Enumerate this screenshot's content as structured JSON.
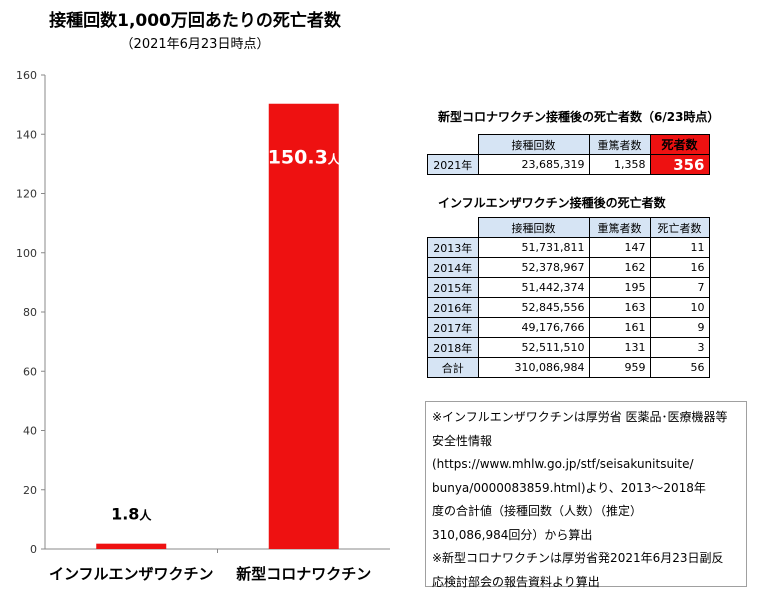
{
  "chart_data": {
    "type": "bar",
    "title": "接種回数1,000万回あたりの死亡者数",
    "subtitle": "（2021年6月23日時点）",
    "categories": [
      "インフルエンザワクチン",
      "新型コロナワクチン"
    ],
    "values": [
      1.8,
      150.3
    ],
    "data_labels": [
      {
        "num": "1.8",
        "unit": "人"
      },
      {
        "num": "150.3",
        "unit": "人"
      }
    ],
    "yticks": [
      "0",
      "20",
      "40",
      "60",
      "80",
      "100",
      "120",
      "140",
      "160"
    ],
    "ylim": [
      0,
      160
    ],
    "bar_color": "#ee1111",
    "grid": false
  },
  "covid_table": {
    "title": "新型コロナワクチン接種後の死亡者数（6/23時点）",
    "headers": [
      "接種回数",
      "重篤者数",
      "死者数"
    ],
    "rows": [
      {
        "year": "2021年",
        "doses": "23,685,319",
        "severe": "1,358",
        "deaths": "356"
      }
    ]
  },
  "flu_table": {
    "title": "インフルエンザワクチン接種後の死亡者数",
    "headers": [
      "接種回数",
      "重篤者数",
      "死亡者数"
    ],
    "rows": [
      {
        "year": "2013年",
        "doses": "51,731,811",
        "severe": "147",
        "deaths": "11"
      },
      {
        "year": "2014年",
        "doses": "52,378,967",
        "severe": "162",
        "deaths": "16"
      },
      {
        "year": "2015年",
        "doses": "51,442,374",
        "severe": "195",
        "deaths": "7"
      },
      {
        "year": "2016年",
        "doses": "52,845,556",
        "severe": "163",
        "deaths": "10"
      },
      {
        "year": "2017年",
        "doses": "49,176,766",
        "severe": "161",
        "deaths": "9"
      },
      {
        "year": "2018年",
        "doses": "52,511,510",
        "severe": "131",
        "deaths": "3"
      },
      {
        "year": "合計",
        "doses": "310,086,984",
        "severe": "959",
        "deaths": "56"
      }
    ]
  },
  "note": {
    "lines": [
      "※インフルエンザワクチンは厚労省 医薬品･医療機器等",
      "安全性情報",
      "(https://www.mhlw.go.jp/stf/seisakunitsuite/",
      "bunya/0000083859.html)より、2013～2018年",
      "度の合計値（接種回数（人数）（推定）",
      "310,086,984回分）から算出",
      "※新型コロナワクチンは厚労省発2021年6月23日副反",
      "応検討部会の報告資料より算出"
    ]
  }
}
